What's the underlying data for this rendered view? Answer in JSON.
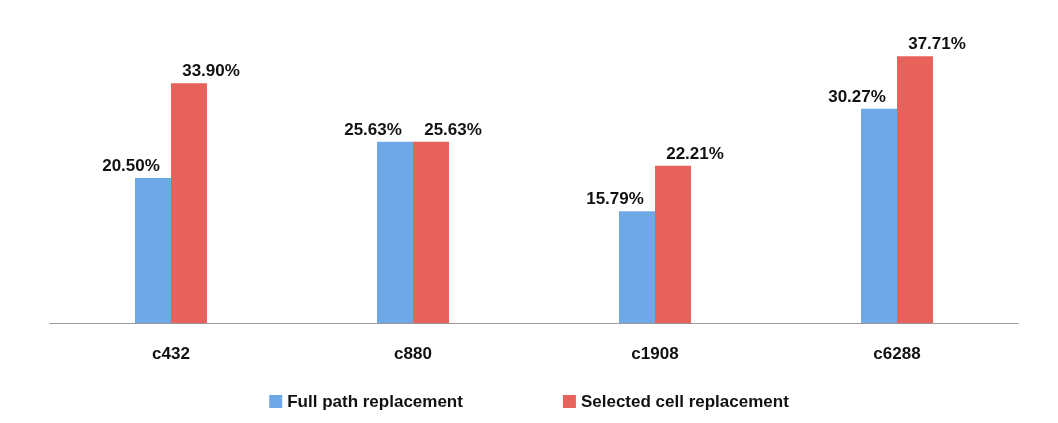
{
  "chart_data": {
    "type": "bar",
    "categories": [
      "c432",
      "c880",
      "c1908",
      "c6288"
    ],
    "series": [
      {
        "name": "Full path replacement",
        "color": "#6fa8e8",
        "values": [
          20.5,
          25.63,
          15.79,
          30.27
        ],
        "value_labels": [
          "20.50%",
          "25.63%",
          "15.79%",
          "30.27%"
        ]
      },
      {
        "name": "Selected cell replacement",
        "color": "#e8625c",
        "values": [
          33.9,
          25.63,
          22.21,
          37.71
        ],
        "value_labels": [
          "33.90%",
          "25.63%",
          "22.21%",
          "37.71%"
        ]
      }
    ],
    "legend": "bottom"
  }
}
